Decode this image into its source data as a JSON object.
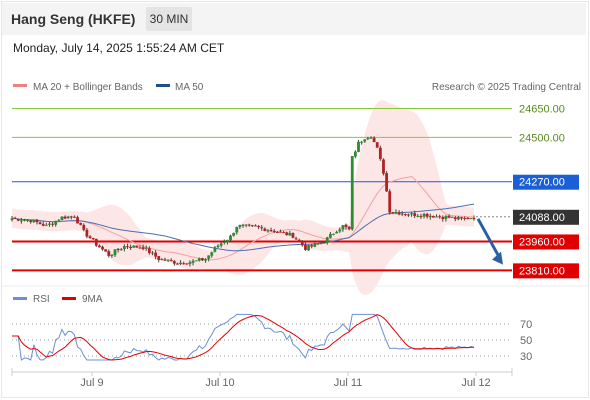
{
  "header": {
    "title": "Hang Seng (HKFE)",
    "interval": "30 MIN",
    "datetime": "Monday, July 14, 2025 1:55:24 AM CET"
  },
  "legend": {
    "items": [
      {
        "label": "MA 20 + Bollinger Bands",
        "color": "#f08080"
      },
      {
        "label": "MA 50",
        "color": "#1f4e8c"
      }
    ],
    "copyright": "Research © 2025 Trading Central"
  },
  "rsi_legend": {
    "items": [
      {
        "label": "RSI",
        "color": "#6b8fd6"
      },
      {
        "label": "9MA",
        "color": "#e00000"
      }
    ]
  },
  "chart_data": {
    "type": "candlestick",
    "x_ticks": [
      "Jul 9",
      "Jul 10",
      "Jul 11",
      "Jul 12"
    ],
    "y_range": [
      23760,
      24720
    ],
    "levels": [
      {
        "value": 24650,
        "label": "24650.00",
        "kind": "target",
        "color": "#8cc63f"
      },
      {
        "value": 24500,
        "label": "24500.00",
        "kind": "target",
        "color": "#8cc63f"
      },
      {
        "value": 24270,
        "label": "24270.00",
        "kind": "pivot",
        "color": "#1a5fd8"
      },
      {
        "value": 24088,
        "label": "24088.00",
        "kind": "last",
        "color": "#333333"
      },
      {
        "value": 23960,
        "label": "23960.00",
        "kind": "support",
        "color": "#e00000"
      },
      {
        "value": 23810,
        "label": "23810.00",
        "kind": "support",
        "color": "#e00000"
      }
    ],
    "arrow": {
      "from": 24088,
      "to": 23840,
      "direction": "down"
    },
    "rsi": {
      "levels": [
        70,
        50,
        30
      ],
      "range": [
        15,
        85
      ]
    }
  }
}
